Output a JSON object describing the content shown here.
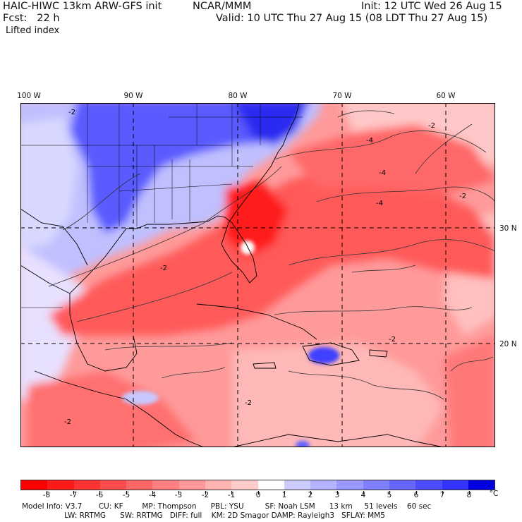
{
  "header": {
    "model": "HAIC-HIWC 13km ARW-GFS init",
    "org": "NCAR/MMM",
    "init": "Init: 12 UTC Wed 26 Aug 15",
    "fcst": "Fcst:   22 h",
    "valid": "Valid: 10 UTC Thu 27 Aug 15 (08 LDT Thu 27 Aug 15)",
    "field": "Lifted index"
  },
  "map": {
    "lon_labels": [
      "100 W",
      "90 W",
      "80 W",
      "70 W",
      "60 W"
    ],
    "lat_labels": [
      "30 N",
      "20 N"
    ],
    "contour_labels": [
      "-2",
      "-4"
    ],
    "colors": {
      "background": "#ffffff",
      "negative_max": "#ff0000",
      "positive_max": "#0000e0"
    }
  },
  "colorbar": {
    "labels": [
      "-8",
      "-7",
      "-6",
      "-5",
      "-4",
      "-3",
      "-2",
      "-1",
      "0",
      "1",
      "2",
      "3",
      "4",
      "5",
      "6",
      "7",
      "8"
    ],
    "unit": "°C",
    "colors": [
      "#ff0000",
      "#ff1a1a",
      "#ff3333",
      "#ff4d4d",
      "#ff6666",
      "#ff8080",
      "#ff9999",
      "#ffb3b3",
      "#ffcccc",
      "#ffffff",
      "#ccccff",
      "#b3b3ff",
      "#9999ff",
      "#8080ff",
      "#6666ff",
      "#4d4dff",
      "#3333ff",
      "#0000e0"
    ]
  },
  "footer": {
    "line1": "Model Info: V3.7       CU: KF        MP: Thompson      PBL: YSU         SF: Noah LSM      13 km     51 levels    60 sec",
    "line2": "                  LW: RRTMG      SW: RRTMG   DIFF: full    KM: 2D Smagor DAMP: Rayleigh3   SFLAY: MM5"
  }
}
